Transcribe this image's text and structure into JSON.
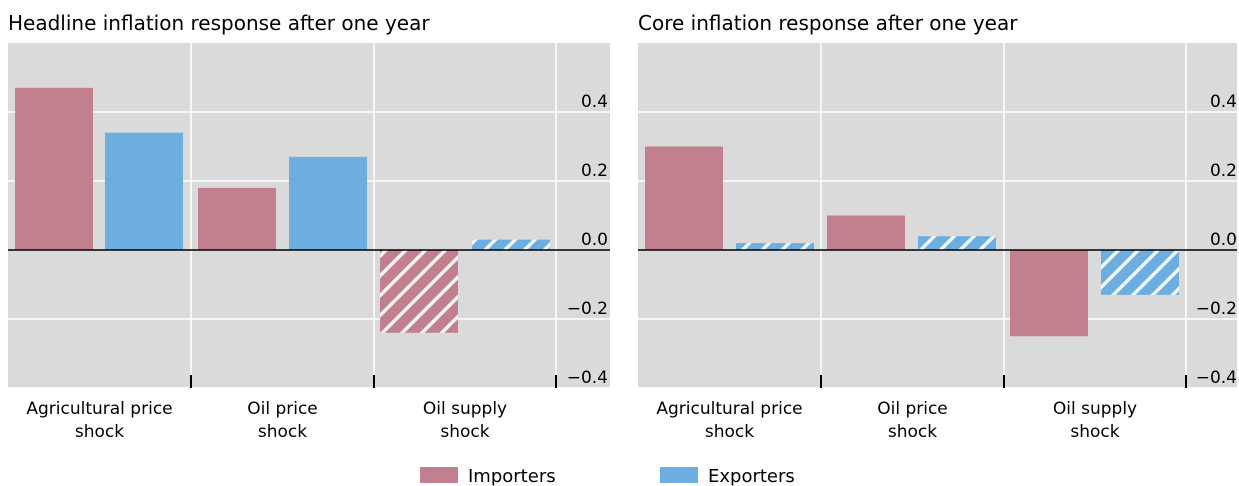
{
  "chart_data": [
    {
      "type": "bar",
      "title": "Headline inflation response after one year",
      "categories": [
        [
          "Agricultural price",
          "shock"
        ],
        [
          "Oil price",
          "shock"
        ],
        [
          "Oil supply",
          "shock"
        ]
      ],
      "series": [
        {
          "name": "Importers",
          "values": [
            0.47,
            0.18,
            -0.24
          ],
          "hatched": [
            false,
            false,
            true
          ]
        },
        {
          "name": "Exporters",
          "values": [
            0.34,
            0.27,
            0.03
          ],
          "hatched": [
            false,
            false,
            true
          ]
        }
      ],
      "ylim": [
        -0.4,
        0.6
      ],
      "yticks": [
        "0.4",
        "0.2",
        "0.0",
        "−0.2",
        "−0.4"
      ],
      "ytick_values": [
        0.4,
        0.2,
        0.0,
        -0.2,
        -0.4
      ],
      "grid": true
    },
    {
      "type": "bar",
      "title": "Core inflation response after one year",
      "categories": [
        [
          "Agricultural price",
          "shock"
        ],
        [
          "Oil price",
          "shock"
        ],
        [
          "Oil supply",
          "shock"
        ]
      ],
      "series": [
        {
          "name": "Importers",
          "values": [
            0.3,
            0.1,
            -0.25
          ],
          "hatched": [
            false,
            false,
            false
          ]
        },
        {
          "name": "Exporters",
          "values": [
            0.02,
            0.04,
            -0.13
          ],
          "hatched": [
            true,
            true,
            true
          ]
        }
      ],
      "ylim": [
        -0.4,
        0.6
      ],
      "yticks": [
        "0.4",
        "0.2",
        "0.0",
        "−0.2",
        "−0.4"
      ],
      "ytick_values": [
        0.4,
        0.2,
        0.0,
        -0.2,
        -0.4
      ],
      "grid": true
    }
  ],
  "legend": {
    "placement": "bottom-center",
    "items": [
      {
        "label": "Importers",
        "color": "#c2808f"
      },
      {
        "label": "Exporters",
        "color": "#6caee0"
      }
    ]
  },
  "colors": {
    "importers": "#c2808f",
    "exporters": "#6caee0",
    "plot_background": "#dadada",
    "gridline": "#ffffff",
    "zero_line": "#000000"
  }
}
